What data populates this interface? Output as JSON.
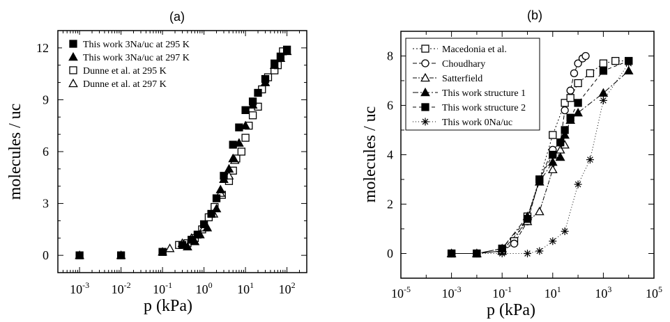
{
  "chart_data": [
    {
      "panel": "(a)",
      "type": "scatter",
      "xlabel": "p (kPa)",
      "ylabel": "molecules / uc",
      "xscale": "log",
      "xlim": [
        0.0003,
        300
      ],
      "ylim": [
        -1,
        13
      ],
      "xticks": [
        {
          "value": 0.001,
          "base": "10",
          "exp": "-3"
        },
        {
          "value": 0.01,
          "base": "10",
          "exp": "-2"
        },
        {
          "value": 0.1,
          "base": "10",
          "exp": "-1"
        },
        {
          "value": 1,
          "base": "10",
          "exp": "0"
        },
        {
          "value": 10,
          "base": "10",
          "exp": "1"
        },
        {
          "value": 100,
          "base": "10",
          "exp": "2"
        }
      ],
      "yticks": [
        {
          "value": 0,
          "label": "0"
        },
        {
          "value": 3,
          "label": "3"
        },
        {
          "value": 6,
          "label": "6"
        },
        {
          "value": 9,
          "label": "9"
        },
        {
          "value": 12,
          "label": "12"
        }
      ],
      "legend_position": "top-left",
      "series": [
        {
          "name": "This work 3Na/uc at 295 K",
          "marker": "square",
          "fill": "filled",
          "x": [
            0.001,
            0.01,
            0.1,
            0.3,
            0.5,
            0.7,
            1,
            1.5,
            2,
            3,
            5,
            7,
            10,
            15,
            20,
            30,
            50,
            70,
            100
          ],
          "y": [
            0,
            0,
            0.2,
            0.6,
            0.9,
            1.2,
            1.8,
            2.4,
            3.3,
            4.6,
            6.4,
            7.4,
            8.4,
            8.9,
            9.4,
            10.2,
            11.1,
            11.5,
            11.9
          ]
        },
        {
          "name": "This work 3Na/uc at 297 K",
          "marker": "triangle",
          "fill": "filled",
          "x": [
            0.001,
            0.01,
            0.1,
            0.4,
            0.6,
            0.8,
            1.2,
            2,
            2.5,
            3,
            4,
            5,
            7,
            10,
            15,
            30,
            50,
            70,
            100
          ],
          "y": [
            0,
            0,
            0.2,
            0.5,
            0.8,
            1.2,
            1.6,
            2.7,
            3.8,
            4.4,
            5.0,
            5.6,
            6.5,
            7.5,
            8.7,
            10.0,
            11.0,
            11.4,
            11.8
          ]
        },
        {
          "name": "Dunne et al. at 295 K",
          "marker": "square",
          "fill": "open",
          "x": [
            0.1,
            0.25,
            0.4,
            0.6,
            0.9,
            1.3,
            1.8,
            2.7,
            4,
            5,
            6,
            8,
            10,
            12,
            15,
            20,
            25,
            35,
            50,
            60,
            80
          ],
          "y": [
            0.2,
            0.6,
            0.7,
            1.0,
            1.5,
            2.2,
            2.8,
            3.5,
            4.3,
            4.9,
            5.6,
            6.0,
            6.8,
            7.5,
            8.1,
            8.6,
            9.6,
            10.3,
            10.7,
            11.0,
            11.8
          ]
        },
        {
          "name": "Dunne et al. at 297 K",
          "marker": "triangle",
          "fill": "open",
          "x": [
            0.15,
            0.3,
            0.5,
            1.0,
            1.7,
            2.5,
            4,
            5.5
          ],
          "y": [
            0.4,
            0.7,
            1.0,
            1.6,
            2.4,
            3.6,
            4.6,
            5.5
          ]
        }
      ]
    },
    {
      "panel": "(b)",
      "type": "line",
      "xlabel": "p (kPa)",
      "ylabel": "molecules / uc",
      "xscale": "log",
      "xlim": [
        1e-05,
        100000
      ],
      "ylim": [
        -1,
        9
      ],
      "xticks": [
        {
          "value": 1e-05,
          "base": "10",
          "exp": "-5"
        },
        {
          "value": 0.001,
          "base": "10",
          "exp": "-3"
        },
        {
          "value": 0.1,
          "base": "10",
          "exp": "-1"
        },
        {
          "value": 10,
          "base": "10",
          "exp": "1"
        },
        {
          "value": 1000,
          "base": "10",
          "exp": "3"
        },
        {
          "value": 100000,
          "base": "10",
          "exp": "5"
        }
      ],
      "yticks": [
        {
          "value": 0,
          "label": "0"
        },
        {
          "value": 2,
          "label": "2"
        },
        {
          "value": 4,
          "label": "4"
        },
        {
          "value": 6,
          "label": "6"
        },
        {
          "value": 8,
          "label": "8"
        }
      ],
      "legend_position": "top-left",
      "series": [
        {
          "name": "Macedonia et al.",
          "marker": "square",
          "fill": "open",
          "dash": "2,3",
          "x": [
            0.001,
            0.01,
            0.1,
            0.3,
            1,
            3,
            10,
            30,
            50,
            100,
            300,
            1000,
            3000,
            10000
          ],
          "y": [
            0,
            0,
            0.1,
            0.5,
            1.5,
            3.0,
            4.8,
            6.1,
            6.3,
            6.9,
            7.3,
            7.7,
            7.8,
            7.8
          ]
        },
        {
          "name": "Choudhary",
          "marker": "circle",
          "fill": "open",
          "dash": "6,3",
          "x": [
            0.001,
            0.01,
            0.1,
            0.3,
            1,
            3,
            10,
            20,
            30,
            50,
            70,
            100,
            150,
            200
          ],
          "y": [
            0,
            0,
            0.1,
            0.4,
            1.3,
            3.0,
            4.2,
            4.5,
            5.8,
            6.6,
            7.3,
            7.7,
            7.9,
            8.0
          ]
        },
        {
          "name": "Satterfield",
          "marker": "triangle",
          "fill": "open",
          "dash": "6,2,2,2",
          "x": [
            0.001,
            0.01,
            0.1,
            1,
            3,
            10,
            20,
            30
          ],
          "y": [
            0,
            0,
            0.1,
            1.3,
            1.7,
            3.4,
            4.2,
            4.4
          ]
        },
        {
          "name": "This work structure 1",
          "marker": "triangle",
          "fill": "filled",
          "dash": "8,3,2,3",
          "x": [
            0.001,
            0.01,
            0.1,
            1,
            3,
            10,
            20,
            30,
            50,
            100,
            1000,
            10000
          ],
          "y": [
            0,
            0,
            0.2,
            1.5,
            2.9,
            3.7,
            3.9,
            4.8,
            5.4,
            5.7,
            6.5,
            7.4
          ]
        },
        {
          "name": "This work structure 2",
          "marker": "square",
          "fill": "filled",
          "dash": "5,4",
          "x": [
            0.001,
            0.01,
            0.1,
            1,
            3,
            10,
            20,
            30,
            50,
            100,
            1000,
            10000
          ],
          "y": [
            0,
            0,
            0.2,
            1.4,
            3.0,
            4.0,
            4.5,
            5.0,
            5.5,
            6.1,
            7.4,
            7.8
          ]
        },
        {
          "name": "This work 0Na/uc",
          "marker": "asterisk",
          "fill": "none",
          "dash": "1,3",
          "x": [
            0.001,
            0.01,
            0.1,
            1,
            3,
            10,
            30,
            100,
            300,
            1000,
            10000
          ],
          "y": [
            0,
            0,
            0,
            0,
            0.1,
            0.5,
            0.9,
            2.8,
            3.8,
            6.2,
            7.7
          ]
        }
      ]
    }
  ]
}
